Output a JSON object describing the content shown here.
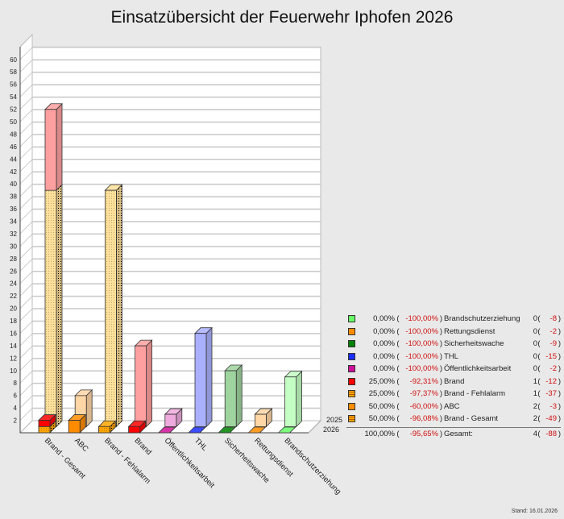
{
  "title": "Einsatzübersicht der Feuerwehr Iphofen 2026",
  "stand": "Stand: 16.01.2026",
  "chart_data": {
    "type": "bar",
    "variant": "3d-grouped",
    "title": "Einsatzübersicht der Feuerwehr Iphofen 2026",
    "categories": [
      "Brand - Gesamt",
      "ABC",
      "Brand - Fehlalarm",
      "Brand",
      "Öffentlichkeitsarbeit",
      "THL",
      "Sicherheitswache",
      "Rettungsdienst",
      "Brandschutzerziehung"
    ],
    "series": [
      {
        "name": "2025",
        "values": [
          51,
          5,
          38,
          13,
          2,
          15,
          9,
          2,
          8
        ],
        "colors": [
          "#ffe09a",
          "#ffd6a6",
          "#ffe09a",
          "#ffa0a0",
          "#eeaadd",
          "#aab0ff",
          "#9fd49f",
          "#ffd6a6",
          "#c4ffc4"
        ]
      },
      {
        "name": "2026",
        "values": [
          2,
          2,
          1,
          1,
          0,
          0,
          0,
          0,
          0
        ],
        "colors": [
          "#ffa500",
          "#ff8c00",
          "#ffa500",
          "#ff0000",
          "#cc1199",
          "#1a2cff",
          "#008000",
          "#ff8c00",
          "#66ff66"
        ]
      }
    ],
    "stacked": {
      "category": "Brand - Gesamt",
      "segments": [
        {
          "name": "Brand - Fehlalarm",
          "2025": 38,
          "2026": 1,
          "colors": [
            "#ffe09a",
            "#ffa500"
          ],
          "patterned": true
        },
        {
          "name": "Brand",
          "2025": 13,
          "2026": 1,
          "colors": [
            "#ffa0a0",
            "#ff0000"
          ],
          "patterned": false
        }
      ]
    },
    "patterned_categories": [
      "Brand - Fehlalarm"
    ],
    "y_ticks": [
      2,
      4,
      6,
      8,
      10,
      12,
      14,
      16,
      18,
      20,
      22,
      24,
      26,
      28,
      30,
      32,
      34,
      36,
      38,
      40,
      42,
      44,
      46,
      48,
      50,
      52,
      54,
      56,
      58,
      60
    ],
    "ylim": [
      0,
      62
    ],
    "grid": true,
    "depth_labels": [
      "2025",
      "2026"
    ],
    "legend_placement": "right"
  },
  "legend": {
    "rows": [
      {
        "color": "#66ff66",
        "patterned": false,
        "pct": "0,00%",
        "change": "-100,00%",
        "name": "Brandschutzerziehung",
        "count": "0",
        "diff": "-8"
      },
      {
        "color": "#ff8c00",
        "patterned": false,
        "pct": "0,00%",
        "change": "-100,00%",
        "name": "Rettungsdienst",
        "count": "0",
        "diff": "-2"
      },
      {
        "color": "#008000",
        "patterned": false,
        "pct": "0,00%",
        "change": "-100,00%",
        "name": "Sicherheitswache",
        "count": "0",
        "diff": "-9"
      },
      {
        "color": "#1a2cff",
        "patterned": false,
        "pct": "0,00%",
        "change": "-100,00%",
        "name": "THL",
        "count": "0",
        "diff": "-15"
      },
      {
        "color": "#cc1199",
        "patterned": false,
        "pct": "0,00%",
        "change": "-100,00%",
        "name": "Öffentlichkeitsarbeit",
        "count": "0",
        "diff": "-2"
      },
      {
        "color": "#ff0000",
        "patterned": false,
        "pct": "25,00%",
        "change": "-92,31%",
        "name": "Brand",
        "count": "1",
        "diff": "-12"
      },
      {
        "color": "#ffa500",
        "patterned": true,
        "pct": "25,00%",
        "change": "-97,37%",
        "name": "Brand - Fehlalarm",
        "count": "1",
        "diff": "-37"
      },
      {
        "color": "#ff8c00",
        "patterned": false,
        "pct": "50,00%",
        "change": "-60,00%",
        "name": "ABC",
        "count": "2",
        "diff": "-3"
      },
      {
        "color": "#ffa500",
        "patterned": true,
        "pct": "50,00%",
        "change": "-96,08%",
        "name": "Brand - Gesamt",
        "count": "2",
        "diff": "-49"
      }
    ],
    "total": {
      "pct": "100,00%",
      "change": "-95,65%",
      "name": "Gesamt:",
      "count": "4",
      "diff": "-88"
    }
  }
}
